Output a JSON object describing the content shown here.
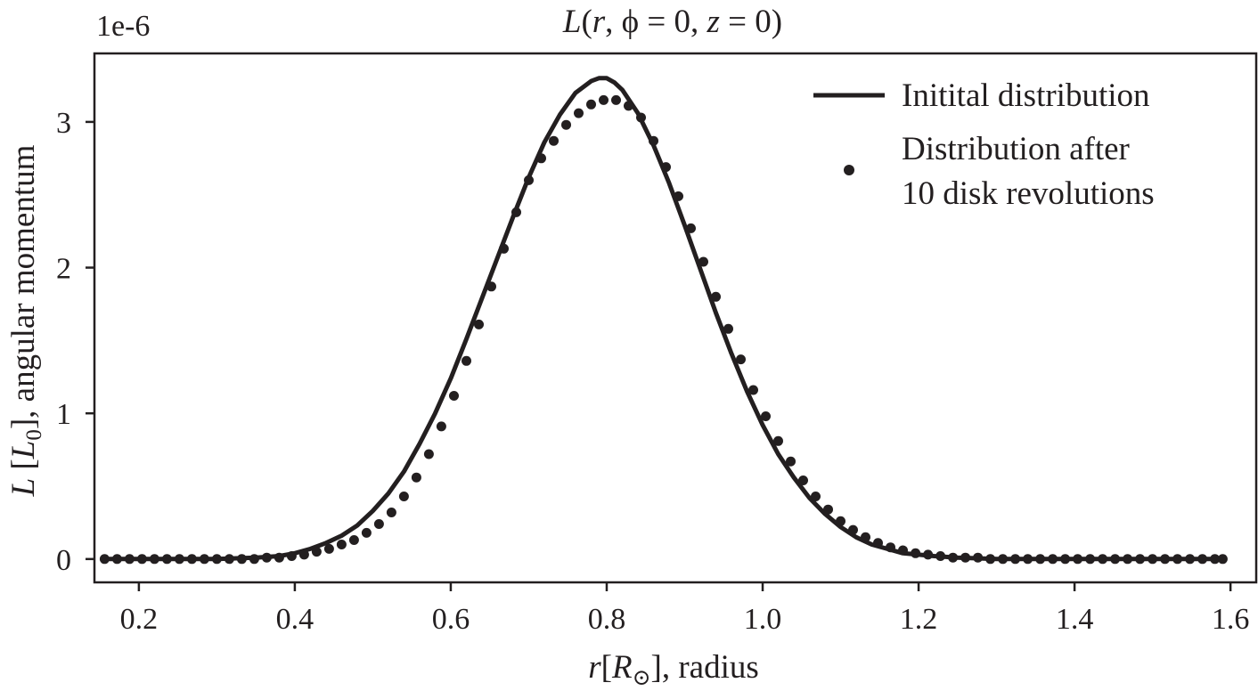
{
  "chart_data": {
    "type": "line",
    "title": "L(r, ϕ = 0, z = 0)",
    "xlabel": "r[R⊙], radius",
    "ylabel": "L [L0], angular momentum",
    "y_scale_note": "1e-6",
    "xlim": [
      0.143,
      1.633
    ],
    "ylim": [
      -0.16,
      3.47
    ],
    "x_ticks": [
      0.2,
      0.4,
      0.6,
      0.8,
      1.0,
      1.2,
      1.4,
      1.6
    ],
    "x_tick_labels": [
      "0.2",
      "0.4",
      "0.6",
      "0.8",
      "1.0",
      "1.2",
      "1.4",
      "1.6"
    ],
    "y_ticks": [
      0,
      1,
      2,
      3
    ],
    "y_tick_labels": [
      "0",
      "1",
      "2",
      "3"
    ],
    "grid": false,
    "legend_position": "top-right",
    "colors": {
      "ink": "#231f20",
      "background": "#ffffff"
    },
    "series": [
      {
        "name": "Initital distribution",
        "style": "line",
        "x": [
          0.156,
          0.2,
          0.25,
          0.3,
          0.35,
          0.38,
          0.4,
          0.42,
          0.44,
          0.46,
          0.48,
          0.5,
          0.52,
          0.54,
          0.56,
          0.58,
          0.6,
          0.62,
          0.64,
          0.66,
          0.68,
          0.7,
          0.72,
          0.74,
          0.76,
          0.78,
          0.79,
          0.8,
          0.81,
          0.82,
          0.84,
          0.86,
          0.88,
          0.9,
          0.92,
          0.94,
          0.96,
          0.98,
          1.0,
          1.02,
          1.04,
          1.06,
          1.08,
          1.1,
          1.12,
          1.14,
          1.16,
          1.18,
          1.2,
          1.22,
          1.25,
          1.3,
          1.35,
          1.4,
          1.5,
          1.59
        ],
        "y": [
          0.0,
          0.0,
          0.0,
          0.0,
          0.01,
          0.02,
          0.04,
          0.07,
          0.11,
          0.16,
          0.23,
          0.33,
          0.45,
          0.6,
          0.79,
          1.0,
          1.24,
          1.51,
          1.79,
          2.07,
          2.35,
          2.62,
          2.86,
          3.05,
          3.2,
          3.28,
          3.3,
          3.3,
          3.27,
          3.22,
          3.06,
          2.84,
          2.58,
          2.29,
          1.99,
          1.69,
          1.41,
          1.15,
          0.92,
          0.72,
          0.56,
          0.42,
          0.31,
          0.22,
          0.15,
          0.1,
          0.07,
          0.04,
          0.03,
          0.02,
          0.01,
          0.0,
          0.0,
          0.0,
          0.0,
          0.0
        ]
      },
      {
        "name": "Distribution after\n10 disk revolutions",
        "style": "markers",
        "x": [
          0.156,
          0.172,
          0.188,
          0.204,
          0.22,
          0.236,
          0.252,
          0.268,
          0.284,
          0.3,
          0.316,
          0.332,
          0.348,
          0.364,
          0.38,
          0.396,
          0.412,
          0.428,
          0.444,
          0.46,
          0.476,
          0.492,
          0.508,
          0.524,
          0.54,
          0.556,
          0.572,
          0.588,
          0.604,
          0.62,
          0.636,
          0.652,
          0.668,
          0.684,
          0.7,
          0.716,
          0.732,
          0.748,
          0.764,
          0.78,
          0.796,
          0.812,
          0.828,
          0.844,
          0.86,
          0.876,
          0.892,
          0.908,
          0.924,
          0.94,
          0.956,
          0.972,
          0.988,
          1.004,
          1.02,
          1.036,
          1.052,
          1.068,
          1.084,
          1.1,
          1.116,
          1.132,
          1.148,
          1.164,
          1.18,
          1.196,
          1.212,
          1.228,
          1.244,
          1.26,
          1.276,
          1.292,
          1.308,
          1.324,
          1.34,
          1.356,
          1.372,
          1.388,
          1.404,
          1.42,
          1.436,
          1.452,
          1.468,
          1.484,
          1.5,
          1.516,
          1.532,
          1.548,
          1.564,
          1.58,
          1.59
        ],
        "y": [
          0.0,
          0.0,
          0.0,
          0.0,
          0.0,
          0.0,
          0.0,
          0.0,
          0.0,
          0.0,
          0.0,
          0.0,
          0.0,
          0.01,
          0.01,
          0.02,
          0.03,
          0.05,
          0.07,
          0.1,
          0.13,
          0.18,
          0.24,
          0.32,
          0.43,
          0.56,
          0.72,
          0.91,
          1.12,
          1.36,
          1.61,
          1.87,
          2.13,
          2.38,
          2.6,
          2.75,
          2.87,
          2.98,
          3.06,
          3.12,
          3.15,
          3.15,
          3.11,
          3.03,
          2.87,
          2.69,
          2.49,
          2.27,
          2.04,
          1.8,
          1.58,
          1.37,
          1.16,
          0.98,
          0.81,
          0.67,
          0.54,
          0.43,
          0.34,
          0.26,
          0.2,
          0.15,
          0.11,
          0.08,
          0.06,
          0.04,
          0.03,
          0.02,
          0.01,
          0.01,
          0.01,
          0.0,
          0.0,
          0.0,
          0.0,
          0.0,
          0.0,
          0.0,
          0.0,
          0.0,
          0.0,
          0.0,
          0.0,
          0.0,
          0.0,
          0.0,
          0.0,
          0.0,
          0.0,
          0.0,
          0.0
        ]
      }
    ]
  }
}
